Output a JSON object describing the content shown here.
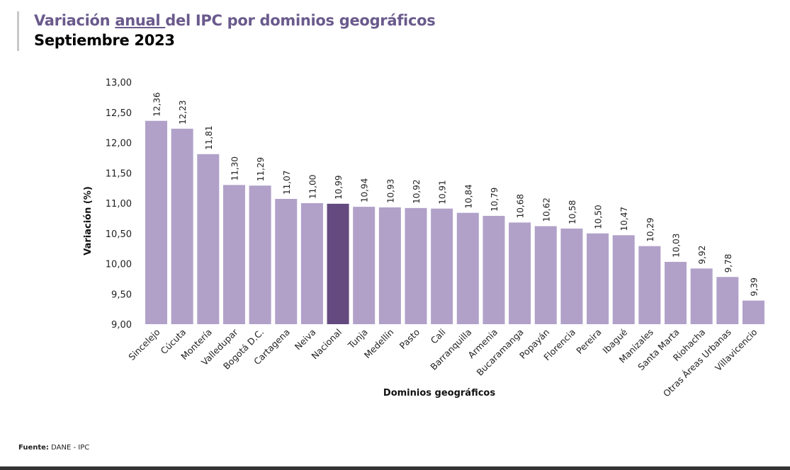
{
  "header": {
    "title_pre": "Variación ",
    "title_underlined": "anual ",
    "title_post": "del IPC por dominios geográficos",
    "subtitle": "Septiembre 2023"
  },
  "footer": {
    "source_label": "Fuente:",
    "source_value": "DANE - IPC"
  },
  "chart_data": {
    "type": "bar",
    "xlabel": "Dominios geográficos",
    "ylabel": "Variación (%)",
    "ylim": [
      9,
      13
    ],
    "yticks": [
      "9,00",
      "9,50",
      "10,00",
      "10,50",
      "11,00",
      "11,50",
      "12,00",
      "12,50",
      "13,00"
    ],
    "grid": false,
    "colors": {
      "bar": "#b1a1c9",
      "highlight": "#644a7f"
    },
    "highlight_category": "Nacional",
    "categories": [
      "Sincelejo",
      "Cúcuta",
      "Montería",
      "Valledupar",
      "Bogotá D.C.",
      "Cartagena",
      "Neiva",
      "Nacional",
      "Tunja",
      "Medellín",
      "Pasto",
      "Cali",
      "Barranquilla",
      "Armenia",
      "Bucaramanga",
      "Popayán",
      "Florencia",
      "Pereira",
      "Ibagué",
      "Manizales",
      "Santa Marta",
      "Riohacha",
      "Otras Áreas Urbanas",
      "Villavicencio"
    ],
    "values": [
      12.36,
      12.23,
      11.81,
      11.3,
      11.29,
      11.07,
      11.0,
      10.99,
      10.94,
      10.93,
      10.92,
      10.91,
      10.84,
      10.79,
      10.68,
      10.62,
      10.58,
      10.5,
      10.47,
      10.29,
      10.03,
      9.92,
      9.78,
      9.39
    ],
    "data_labels": [
      "12,36",
      "12,23",
      "11,81",
      "11,30",
      "11,29",
      "11,07",
      "11,00",
      "10,99",
      "10,94",
      "10,93",
      "10,92",
      "10,91",
      "10,84",
      "10,79",
      "10,68",
      "10,62",
      "10,58",
      "10,50",
      "10,47",
      "10,29",
      "10,03",
      "9,92",
      "9,78",
      "9,39"
    ]
  }
}
